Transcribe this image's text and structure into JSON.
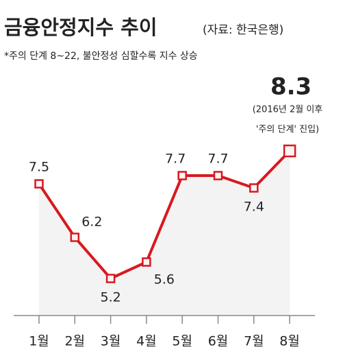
{
  "chart_data": {
    "type": "line",
    "title": "금융안정지수 추이",
    "source": "(자료: 한국은행)",
    "subtitle": "*주의 단계 8~22, 불안정성 심할수록 지수 상승",
    "annotation": [
      "(2016년 2월 이후",
      "'주의 단계' 진입)"
    ],
    "categories": [
      "1월",
      "2월",
      "3월",
      "4월",
      "5월",
      "6월",
      "7월",
      "8월"
    ],
    "values": [
      7.5,
      6.2,
      5.2,
      5.6,
      7.7,
      7.7,
      7.4,
      8.3
    ],
    "color": "#d7191f",
    "area_color": "#f3f3f3",
    "ylim": [
      4.3,
      9
    ]
  }
}
